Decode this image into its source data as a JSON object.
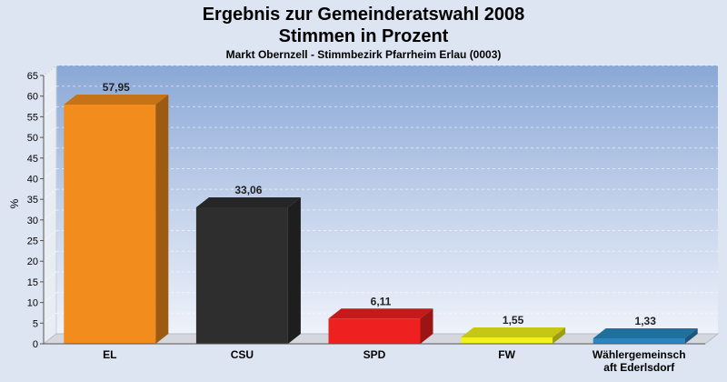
{
  "chart_data": {
    "type": "bar",
    "title": "Ergebnis zur Gemeinderatswahl 2008",
    "title_line2": "Stimmen in Prozent",
    "subtitle": "Markt Obernzell - Stimmbezirk Pfarrheim Erlau (0003)",
    "xlabel": "",
    "ylabel": "%",
    "ylim": [
      0,
      65
    ],
    "ytick_step": 5,
    "grid": true,
    "categories": [
      "EL",
      "CSU",
      "SPD",
      "FW",
      "Wählergemeinsch aft Ederlsdorf"
    ],
    "category_lines": [
      [
        "EL"
      ],
      [
        "CSU"
      ],
      [
        "SPD"
      ],
      [
        "FW"
      ],
      [
        "Wählergemeinsch",
        "aft Ederlsdorf"
      ]
    ],
    "values": [
      57.95,
      33.06,
      6.11,
      1.55,
      1.33
    ],
    "value_labels": [
      "57,95",
      "33,06",
      "6,11",
      "1,55",
      "1,33"
    ],
    "colors": [
      "#f28c1c",
      "#2e2e2e",
      "#ef2020",
      "#f2f21a",
      "#2a86c0"
    ]
  }
}
